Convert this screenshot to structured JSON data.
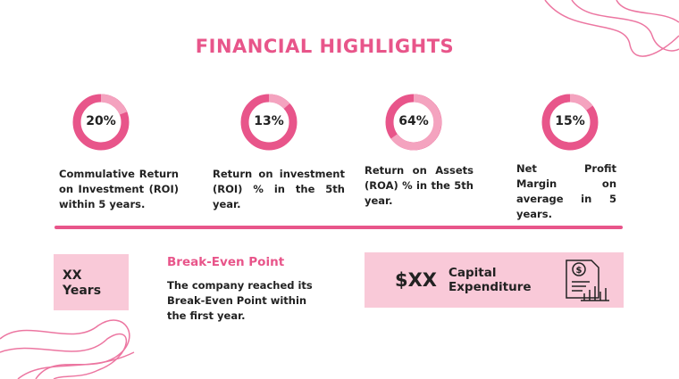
{
  "header": {
    "title": "FINANCIAL HIGHLIGHTS"
  },
  "metrics": [
    {
      "value": "20%",
      "text": "Commulative Return on Investment (ROI) within 5 years."
    },
    {
      "value": "13%",
      "text": "Return on investment (ROI) % in the 5th year."
    },
    {
      "value": "64%",
      "text": "Return on Assets (ROA) % in the 5th year."
    },
    {
      "value": "15%",
      "text": "Net Profit Margin on average in 5 years."
    }
  ],
  "break_even": {
    "badge": "XX Years",
    "title": "Break-Even Point",
    "text": "The company reached its Break-Even Point within the first year."
  },
  "capex": {
    "value": "$XX",
    "label": "Capital Expenditure"
  }
}
